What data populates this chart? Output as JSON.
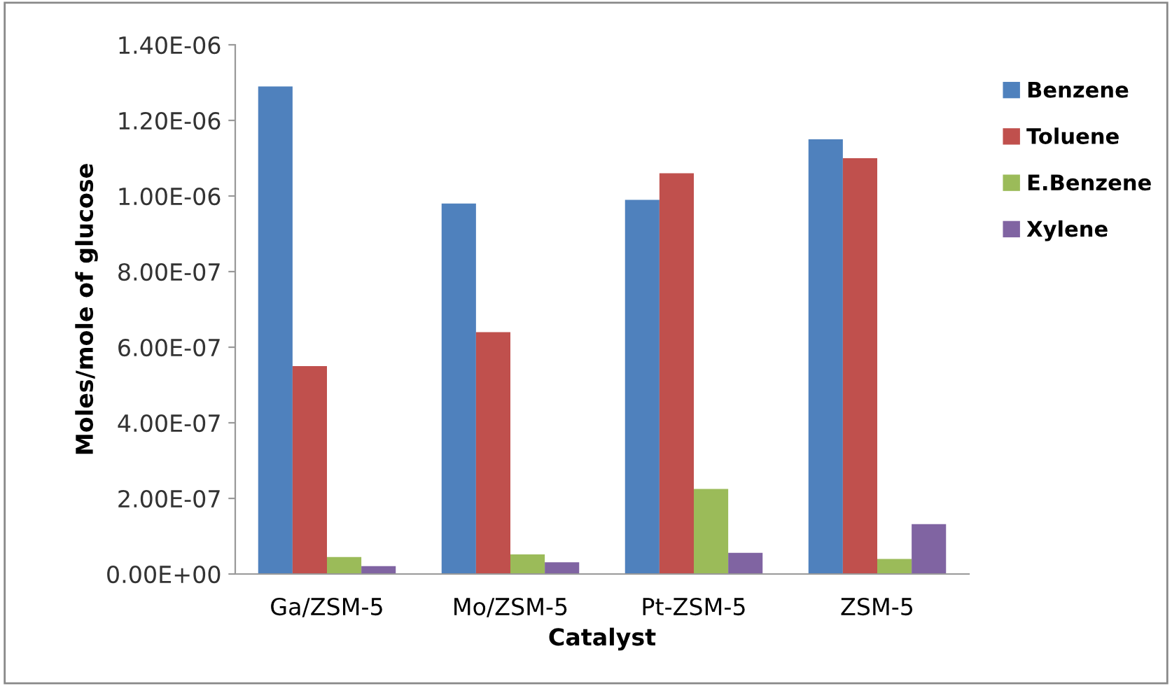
{
  "chart_data": {
    "type": "bar",
    "xlabel": "Catalyst",
    "ylabel": "Moles/mole of glucose",
    "categories": [
      "Ga/ZSM-5",
      "Mo/ZSM-5",
      "Pt-ZSM-5",
      "ZSM-5"
    ],
    "series": [
      {
        "name": "Benzene",
        "color": "#4f81bd",
        "values": [
          1.29e-06,
          9.8e-07,
          9.9e-07,
          1.15e-06
        ]
      },
      {
        "name": "Toluene",
        "color": "#c0504d",
        "values": [
          5.5e-07,
          6.4e-07,
          1.06e-06,
          1.1e-06
        ]
      },
      {
        "name": "E.Benzene",
        "color": "#9bbb59",
        "values": [
          4.5e-08,
          5.2e-08,
          2.25e-07,
          4e-08
        ]
      },
      {
        "name": "Xylene",
        "color": "#8064a2",
        "values": [
          2.1e-08,
          3.1e-08,
          5.6e-08,
          1.32e-07
        ]
      }
    ],
    "ylim": [
      0,
      1.4e-06
    ],
    "yticks": [
      {
        "value": 0,
        "label": "0.00E+00"
      },
      {
        "value": 2e-07,
        "label": "2.00E-07"
      },
      {
        "value": 4e-07,
        "label": "4.00E-07"
      },
      {
        "value": 6e-07,
        "label": "6.00E-07"
      },
      {
        "value": 8e-07,
        "label": "8.00E-07"
      },
      {
        "value": 1e-06,
        "label": "1.00E-06"
      },
      {
        "value": 1.2e-06,
        "label": "1.20E-06"
      },
      {
        "value": 1.4e-06,
        "label": "1.40E-06"
      }
    ],
    "grid": false,
    "legend": "right"
  }
}
